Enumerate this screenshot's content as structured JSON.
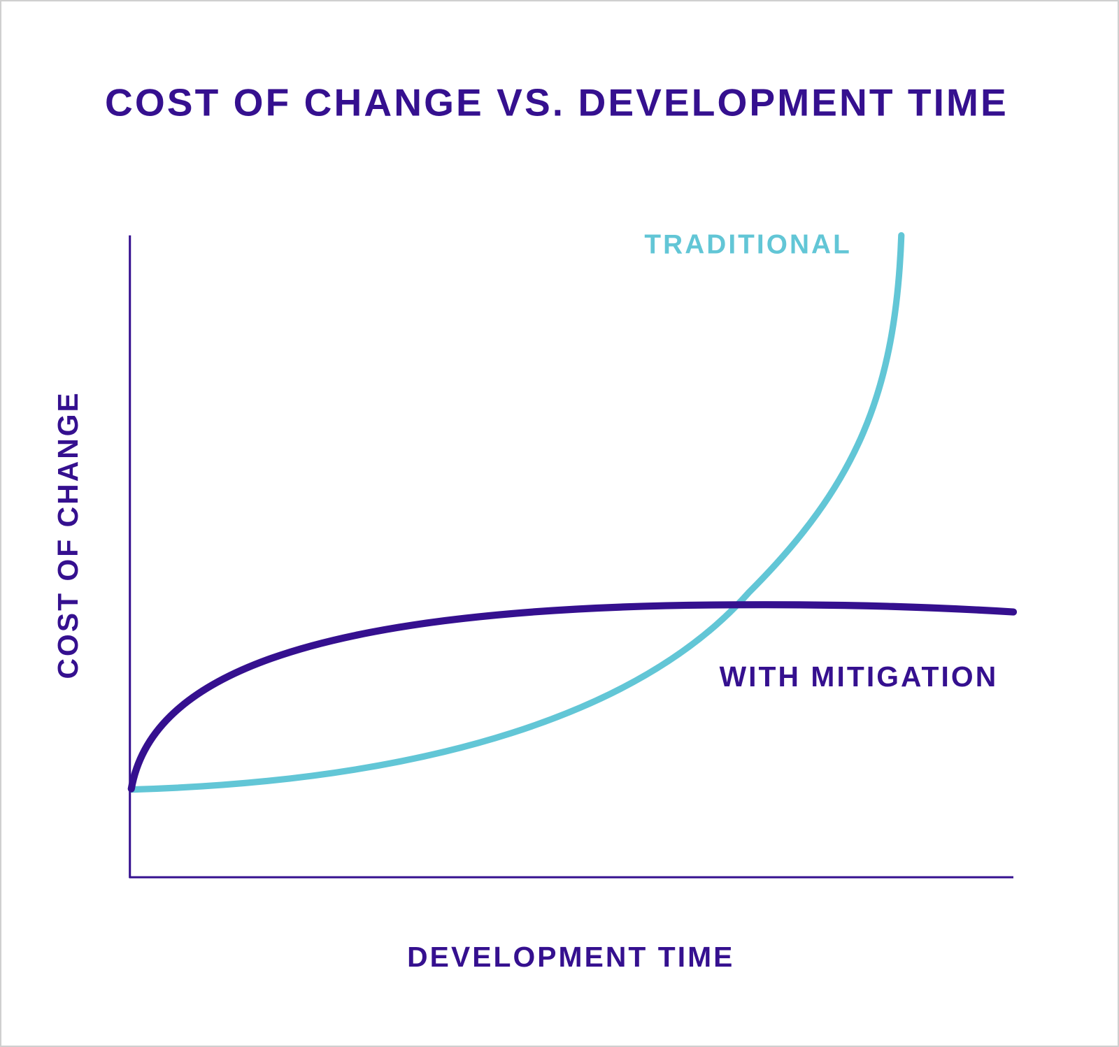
{
  "title": "COST OF CHANGE VS. DEVELOPMENT TIME",
  "y_axis_label": "COST OF CHANGE",
  "x_axis_label": "DEVELOPMENT TIME",
  "curves": [
    {
      "label": "TRADITIONAL"
    },
    {
      "label": "WITH MITIGATION"
    }
  ]
}
